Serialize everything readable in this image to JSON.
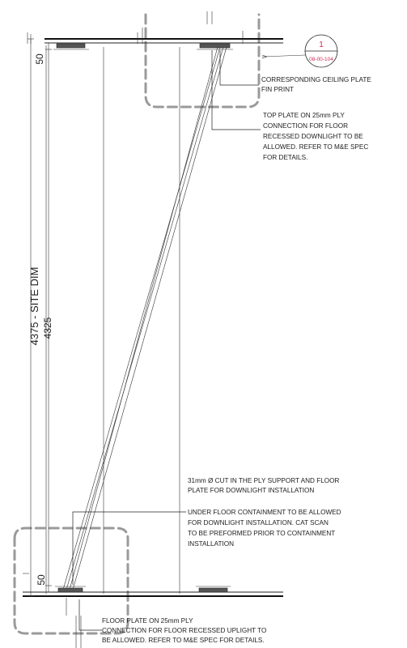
{
  "notes": {
    "ceiling_plate": [
      "CORRESPONDING CEILING PLATE",
      "FIN PRINT"
    ],
    "top_plate": [
      "TOP PLATE ON 25mm PLY",
      "CONNECTION FOR FLOOR",
      "RECESSED DOWNLIGHT TO BE",
      "ALLOWED. REFER TO M&E SPEC",
      "FOR DETAILS."
    ],
    "cut": [
      "31mm Ø CUT IN THE PLY SUPPORT AND FLOOR",
      "PLATE FOR DOWNLIGHT INSTALLATION"
    ],
    "under_floor": [
      "UNDER FLOOR CONTAINMENT TO BE ALLOWED",
      "FOR DOWNLIGHT INSTALLATION.  CAT SCAN",
      "TO BE PREFORMED PRIOR TO CONTAINMENT",
      "INSTALLATION"
    ],
    "floor_plate": [
      "FLOOR PLATE ON 25mm PLY",
      "CONNECTION FOR FLOOR RECESSED UPLIGHT TO",
      "BE ALLOWED. REFER TO M&E SPEC FOR DETAILS."
    ]
  },
  "dimensions": {
    "overall": "4375 - SITE DIM",
    "clear": "4325",
    "top_offset": "50",
    "bottom_offset": "50"
  },
  "section_marker": {
    "number": "1",
    "sheet_ref": "08-00-104"
  }
}
